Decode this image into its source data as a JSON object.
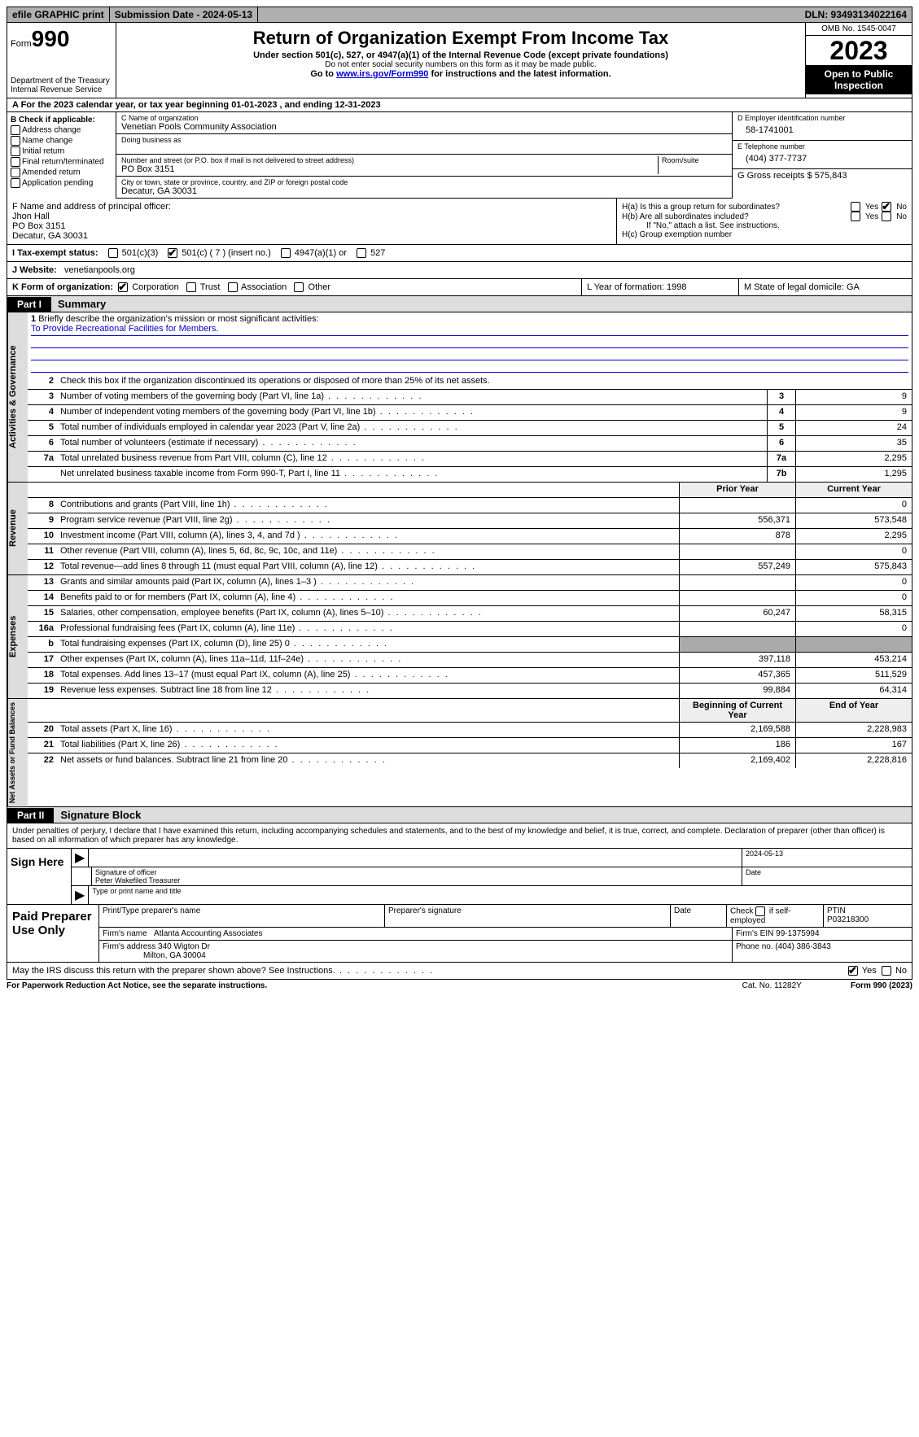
{
  "topbar": {
    "efile": "efile GRAPHIC print",
    "submission": "Submission Date - 2024-05-13",
    "dln": "DLN: 93493134022164"
  },
  "header": {
    "form_label": "Form",
    "form_number": "990",
    "dept": "Department of the Treasury Internal Revenue Service",
    "title": "Return of Organization Exempt From Income Tax",
    "sub1": "Under section 501(c), 527, or 4947(a)(1) of the Internal Revenue Code (except private foundations)",
    "sub2": "Do not enter social security numbers on this form as it may be made public.",
    "sub3_pre": "Go to ",
    "sub3_link": "www.irs.gov/Form990",
    "sub3_post": " for instructions and the latest information.",
    "omb": "OMB No. 1545-0047",
    "year": "2023",
    "open": "Open to Public Inspection"
  },
  "line_a": "A For the 2023 calendar year, or tax year beginning 01-01-2023   , and ending 12-31-2023",
  "box_b": {
    "label": "B Check if applicable:",
    "opts": [
      "Address change",
      "Name change",
      "Initial return",
      "Final return/terminated",
      "Amended return",
      "Application pending"
    ]
  },
  "box_c": {
    "name_hint": "C Name of organization",
    "name": "Venetian Pools Community Association",
    "dba_hint": "Doing business as",
    "addr_hint": "Number and street (or P.O. box if mail is not delivered to street address)",
    "room_hint": "Room/suite",
    "addr": "PO Box 3151",
    "city_hint": "City or town, state or province, country, and ZIP or foreign postal code",
    "city": "Decatur, GA  30031"
  },
  "box_d": {
    "hint": "D Employer identification number",
    "val": "58-1741001"
  },
  "box_e": {
    "hint": "E Telephone number",
    "val": "(404) 377-7737"
  },
  "box_g": {
    "label": "G Gross receipts $ ",
    "val": "575,843"
  },
  "box_f": {
    "hint": "F  Name and address of principal officer:",
    "name": "Jhon Hall",
    "addr1": "PO Box 3151",
    "addr2": "Decatur, GA  30031"
  },
  "box_h": {
    "ha": "H(a)  Is this a group return for subordinates?",
    "hb": "H(b)  Are all subordinates included?",
    "hb_note": "If \"No,\" attach a list. See instructions.",
    "hc": "H(c)  Group exemption number",
    "yes": "Yes",
    "no": "No"
  },
  "status": {
    "label": "I   Tax-exempt status:",
    "o1": "501(c)(3)",
    "o2": "501(c) ( 7 ) (insert no.)",
    "o3": "4947(a)(1) or",
    "o4": "527"
  },
  "web": {
    "label": "J   Website:",
    "val": "venetianpools.org"
  },
  "line_k": {
    "label": "K Form of organization:",
    "opts": [
      "Corporation",
      "Trust",
      "Association",
      "Other"
    ],
    "l": "L Year of formation: 1998",
    "m": "M State of legal domicile: GA"
  },
  "part1": {
    "num": "Part I",
    "title": "Summary"
  },
  "summary": {
    "sec1_label": "Activities & Governance",
    "line1": "Briefly describe the organization's mission or most significant activities:",
    "mission": "To Provide Recreational Facilities for Members.",
    "line2": "Check this box        if the organization discontinued its operations or disposed of more than 25% of its net assets.",
    "rows1": [
      {
        "n": "3",
        "d": "Number of voting members of the governing body (Part VI, line 1a)",
        "b": "3",
        "v": "9"
      },
      {
        "n": "4",
        "d": "Number of independent voting members of the governing body (Part VI, line 1b)",
        "b": "4",
        "v": "9"
      },
      {
        "n": "5",
        "d": "Total number of individuals employed in calendar year 2023 (Part V, line 2a)",
        "b": "5",
        "v": "24"
      },
      {
        "n": "6",
        "d": "Total number of volunteers (estimate if necessary)",
        "b": "6",
        "v": "35"
      },
      {
        "n": "7a",
        "d": "Total unrelated business revenue from Part VIII, column (C), line 12",
        "b": "7a",
        "v": "2,295"
      },
      {
        "n": "",
        "d": "Net unrelated business taxable income from Form 990-T, Part I, line 11",
        "b": "7b",
        "v": "1,295"
      }
    ],
    "rev_label": "Revenue",
    "hdr_prior": "Prior Year",
    "hdr_curr": "Current Year",
    "rows_rev": [
      {
        "n": "8",
        "d": "Contributions and grants (Part VIII, line 1h)",
        "p": "",
        "c": "0"
      },
      {
        "n": "9",
        "d": "Program service revenue (Part VIII, line 2g)",
        "p": "556,371",
        "c": "573,548"
      },
      {
        "n": "10",
        "d": "Investment income (Part VIII, column (A), lines 3, 4, and 7d )",
        "p": "878",
        "c": "2,295"
      },
      {
        "n": "11",
        "d": "Other revenue (Part VIII, column (A), lines 5, 6d, 8c, 9c, 10c, and 11e)",
        "p": "",
        "c": "0"
      },
      {
        "n": "12",
        "d": "Total revenue—add lines 8 through 11 (must equal Part VIII, column (A), line 12)",
        "p": "557,249",
        "c": "575,843"
      }
    ],
    "exp_label": "Expenses",
    "rows_exp": [
      {
        "n": "13",
        "d": "Grants and similar amounts paid (Part IX, column (A), lines 1–3 )",
        "p": "",
        "c": "0"
      },
      {
        "n": "14",
        "d": "Benefits paid to or for members (Part IX, column (A), line 4)",
        "p": "",
        "c": "0"
      },
      {
        "n": "15",
        "d": "Salaries, other compensation, employee benefits (Part IX, column (A), lines 5–10)",
        "p": "60,247",
        "c": "58,315"
      },
      {
        "n": "16a",
        "d": "Professional fundraising fees (Part IX, column (A), line 11e)",
        "p": "",
        "c": "0"
      },
      {
        "n": "b",
        "d": "Total fundraising expenses (Part IX, column (D), line 25) 0",
        "p": "grey",
        "c": "grey"
      },
      {
        "n": "17",
        "d": "Other expenses (Part IX, column (A), lines 11a–11d, 11f–24e)",
        "p": "397,118",
        "c": "453,214"
      },
      {
        "n": "18",
        "d": "Total expenses. Add lines 13–17 (must equal Part IX, column (A), line 25)",
        "p": "457,365",
        "c": "511,529"
      },
      {
        "n": "19",
        "d": "Revenue less expenses. Subtract line 18 from line 12",
        "p": "99,884",
        "c": "64,314"
      }
    ],
    "net_label": "Net Assets or Fund Balances",
    "hdr_begin": "Beginning of Current Year",
    "hdr_end": "End of Year",
    "rows_net": [
      {
        "n": "20",
        "d": "Total assets (Part X, line 16)",
        "p": "2,169,588",
        "c": "2,228,983"
      },
      {
        "n": "21",
        "d": "Total liabilities (Part X, line 26)",
        "p": "186",
        "c": "167"
      },
      {
        "n": "22",
        "d": "Net assets or fund balances. Subtract line 21 from line 20",
        "p": "2,169,402",
        "c": "2,228,816"
      }
    ]
  },
  "part2": {
    "num": "Part II",
    "title": "Signature Block"
  },
  "declaration": "Under penalties of perjury, I declare that I have examined this return, including accompanying schedules and statements, and to the best of my knowledge and belief, it is true, correct, and complete. Declaration of preparer (other than officer) is based on all information of which preparer has any knowledge.",
  "sign": {
    "label": "Sign Here",
    "date": "2024-05-13",
    "sig_hint": "Signature of officer",
    "date_hint": "Date",
    "name": "Peter Wakefiled Treasurer",
    "name_hint": "Type or print name and title"
  },
  "prep": {
    "label": "Paid Preparer Use Only",
    "h1": "Print/Type preparer's name",
    "h2": "Preparer's signature",
    "h3": "Date",
    "h4_pre": "Check ",
    "h4_post": " if self-employed",
    "h5": "PTIN",
    "ptin": "P03218300",
    "firm_l": "Firm's name",
    "firm": "Atlanta Accounting Associates",
    "ein_l": "Firm's EIN",
    "ein": "99-1375994",
    "addr_l": "Firm's address",
    "addr1": "340 Wigton Dr",
    "addr2": "Milton, GA  30004",
    "phone_l": "Phone no.",
    "phone": "(404) 386-3843"
  },
  "discuss": "May the IRS discuss this return with the preparer shown above? See Instructions.",
  "footer": {
    "l": "For Paperwork Reduction Act Notice, see the separate instructions.",
    "m": "Cat. No. 11282Y",
    "r": "Form 990 (2023)"
  }
}
